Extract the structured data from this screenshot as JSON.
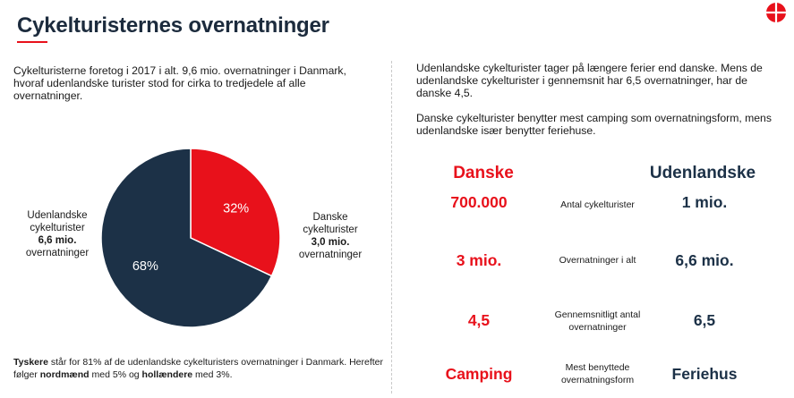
{
  "page": {
    "title": "Cykelturisternes overnatninger",
    "intro": "Cykelturisterne foretog i 2017 i alt. 9,6 mio. overnatninger i Danmark, hvoraf udenlandske turister stod for cirka to tredjedele af alle overnatninger.",
    "right_paragraph_1": "Udenlandske cykelturister tager på længere ferier end danske. Mens de udenlandske cykelturister i gennemsnit har 6,5 overnatninger, har de danske 4,5.",
    "right_paragraph_2": "Danske cykelturister benytter mest camping som overnatningsform, mens udenlandske især benytter feriehuse."
  },
  "pie_labels": {
    "left_line1": "Udenlandske",
    "left_line2": "cykelturister",
    "left_line3": "6,6 mio.",
    "left_line4": "overnatninger",
    "right_line1": "Danske",
    "right_line2": "cykelturister",
    "right_line3": "3,0 mio.",
    "right_line4": "overnatninger"
  },
  "footnote": {
    "part1_bold": "Tyskere",
    "part2": " står for 81% af de udenlandske cykelturisters overnatninger i Danmark. Herefter følger ",
    "part3_bold": "nordmænd",
    "part4": " med 5% og ",
    "part5_bold": "hollændere",
    "part6": " med 3%."
  },
  "comparison": {
    "header_danish": "Danske",
    "header_foreign": "Udenlandske",
    "rows": [
      {
        "danish": "700.000",
        "metric_line1": "Antal cykelturister",
        "metric_line2": "",
        "foreign": "1 mio."
      },
      {
        "danish": "3 mio.",
        "metric_line1": "Overnatninger i alt",
        "metric_line2": "",
        "foreign": "6,6 mio."
      },
      {
        "danish": "4,5",
        "metric_line1": "Gennemsnitligt antal",
        "metric_line2": "overnatninger",
        "foreign": "6,5"
      },
      {
        "danish": "Camping",
        "metric_line1": "Mest benyttede",
        "metric_line2": "overnatningsform",
        "foreign": "Feriehus"
      }
    ]
  },
  "colors": {
    "danish": "#e8111b",
    "foreign": "#1c3147",
    "logo": "#e8111b"
  },
  "chart_data": {
    "type": "pie",
    "title": "",
    "slices": [
      {
        "label": "32%",
        "value": 32,
        "color": "#e8111b"
      },
      {
        "label": "68%",
        "value": 68,
        "color": "#1c3147"
      }
    ],
    "start_angle": "12 o'clock",
    "direction": "clockwise"
  }
}
